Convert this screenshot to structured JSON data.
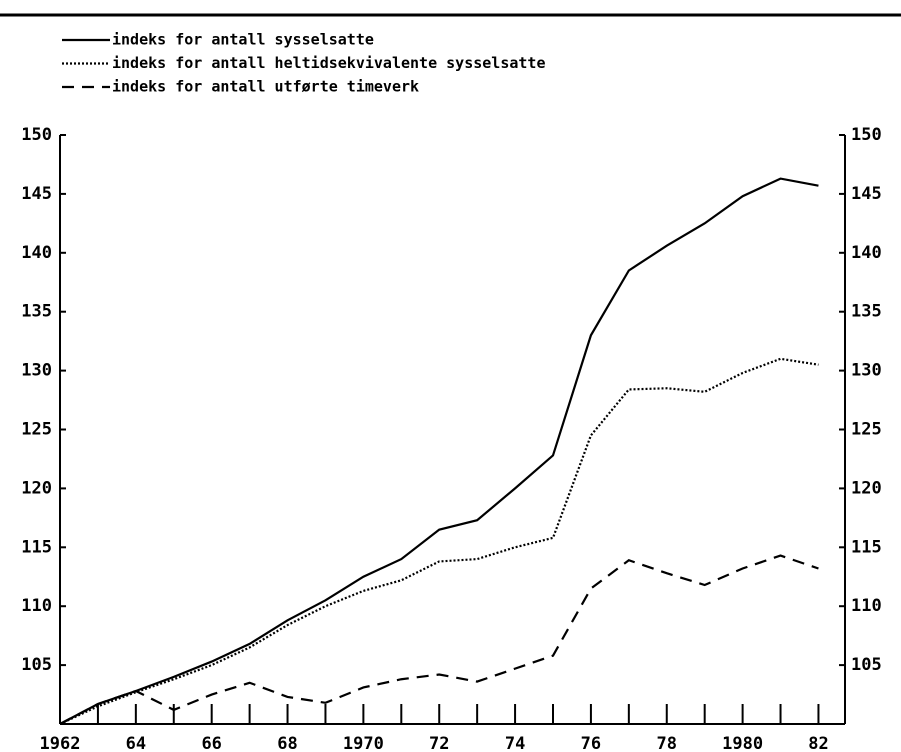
{
  "chart_data": {
    "type": "line",
    "x": [
      1962,
      1963,
      1964,
      1965,
      1966,
      1967,
      1968,
      1969,
      1970,
      1971,
      1972,
      1973,
      1974,
      1975,
      1976,
      1977,
      1978,
      1979,
      1980,
      1981,
      1982
    ],
    "series": [
      {
        "name": "indeks for antall sysselsatte",
        "color": "#000000",
        "dash": "solid",
        "values": [
          100,
          101.7,
          102.8,
          104,
          105.3,
          106.8,
          108.8,
          110.5,
          112.5,
          114,
          116.5,
          117.3,
          120,
          122.8,
          133,
          138.5,
          140.6,
          142.5,
          144.8,
          146.3,
          145.7
        ]
      },
      {
        "name": "indeks for antall heltidsekvivalente sysselsatte",
        "color": "#000000",
        "dash": "dotted",
        "values": [
          100,
          101.5,
          102.7,
          103.8,
          105,
          106.5,
          108.4,
          110,
          111.3,
          112.2,
          113.8,
          114,
          115,
          115.8,
          124.5,
          128.4,
          128.5,
          128.2,
          129.8,
          131,
          130.5
        ]
      },
      {
        "name": "indeks for antall utførte timeverk",
        "color": "#000000",
        "dash": "dashed",
        "values": [
          100,
          101.7,
          102.8,
          101.2,
          102.5,
          103.5,
          102.3,
          101.8,
          103.1,
          103.8,
          104.2,
          103.6,
          104.7,
          105.8,
          111.5,
          113.9,
          112.8,
          111.8,
          113.2,
          114.3,
          113.2
        ]
      }
    ],
    "xlim": [
      1962,
      1982.7
    ],
    "xticks": [
      1962,
      {
        "value": 1964,
        "label": "64"
      },
      {
        "value": 1966,
        "label": "66"
      },
      {
        "value": 1968,
        "label": "68"
      },
      1970,
      {
        "value": 1972,
        "label": "72"
      },
      {
        "value": 1974,
        "label": "74"
      },
      {
        "value": 1976,
        "label": "76"
      },
      {
        "value": 1978,
        "label": "78"
      },
      1980,
      {
        "value": 1982,
        "label": "82"
      }
    ],
    "xminor_ticks": [
      1963,
      1965,
      1967,
      1969,
      1971,
      1973,
      1975,
      1977,
      1979,
      1981
    ],
    "ylim": [
      100,
      150
    ],
    "yticks": [
      105,
      110,
      115,
      120,
      125,
      130,
      135,
      140,
      145,
      150
    ]
  }
}
